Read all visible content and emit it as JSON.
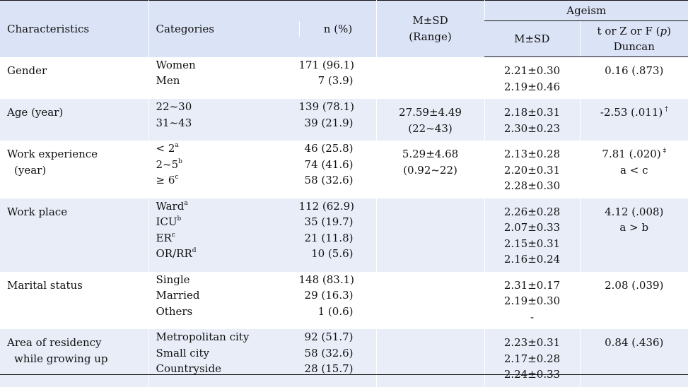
{
  "header": {
    "characteristics": "Characteristics",
    "categories": "Categories",
    "n_pct": "n (%)",
    "msd": "M±SD",
    "range": "(Range)",
    "ageism": "Ageism",
    "ageism_msd": "M±SD",
    "test_line1": "t or Z or F (",
    "test_p": "p",
    "test_line1_end": ")",
    "test_line2": "Duncan"
  },
  "rows": [
    {
      "char": [
        "Gender"
      ],
      "cats": [
        {
          "t": "Women",
          "s": ""
        },
        {
          "t": "Men",
          "s": ""
        }
      ],
      "n": [
        "171 (96.1)",
        "7 (3.9)"
      ],
      "msd": [],
      "age_msd": [
        "2.21±0.30",
        "2.19±0.46"
      ],
      "test": [
        {
          "t": "0.16 (.873)",
          "s": ""
        }
      ]
    },
    {
      "char": [
        "Age (year)"
      ],
      "cats": [
        {
          "t": "22~30",
          "s": ""
        },
        {
          "t": "31~43",
          "s": ""
        }
      ],
      "n": [
        "139 (78.1)",
        "39 (21.9)"
      ],
      "msd": [
        "27.59±4.49",
        "(22~43)"
      ],
      "age_msd": [
        "2.18±0.31",
        "2.30±0.23"
      ],
      "test": [
        {
          "t": "-2.53 (.011)",
          "s": " †"
        }
      ]
    },
    {
      "char": [
        "Work experience",
        "(year)"
      ],
      "cats": [
        {
          "t": "< 2",
          "s": "a"
        },
        {
          "t": "2~5",
          "s": "b"
        },
        {
          "t": "≥ 6",
          "s": "c"
        }
      ],
      "n": [
        "46 (25.8)",
        "74 (41.6)",
        "58 (32.6)"
      ],
      "msd": [
        "5.29±4.68",
        "(0.92~22)"
      ],
      "age_msd": [
        "2.13±0.28",
        "2.20±0.31",
        "2.28±0.30"
      ],
      "test": [
        {
          "t": "7.81 (.020)",
          "s": " ‡"
        },
        {
          "t": "a < c",
          "s": ""
        }
      ]
    },
    {
      "char": [
        "Work place"
      ],
      "cats": [
        {
          "t": "Ward",
          "s": "a"
        },
        {
          "t": "ICU",
          "s": "b"
        },
        {
          "t": "ER",
          "s": "c"
        },
        {
          "t": "OR/RR",
          "s": "d"
        }
      ],
      "n": [
        "112 (62.9)",
        "35 (19.7)",
        "21 (11.8)",
        "10 (5.6)"
      ],
      "msd": [],
      "age_msd": [
        "2.26±0.28",
        "2.07±0.33",
        "2.15±0.31",
        "2.16±0.24"
      ],
      "test": [
        {
          "t": "4.12 (.008)",
          "s": ""
        },
        {
          "t": "a > b",
          "s": ""
        }
      ]
    },
    {
      "char": [
        "Marital status"
      ],
      "cats": [
        {
          "t": "Single",
          "s": ""
        },
        {
          "t": "Married",
          "s": ""
        },
        {
          "t": "Others",
          "s": ""
        }
      ],
      "n": [
        "148 (83.1)",
        "29 (16.3)",
        "1 (0.6)"
      ],
      "msd": [],
      "age_msd": [
        "2.31±0.17",
        "2.19±0.30",
        "-"
      ],
      "test": [
        {
          "t": "2.08 (.039)",
          "s": ""
        }
      ]
    },
    {
      "char": [
        "Area of residency",
        "while growing up"
      ],
      "cats": [
        {
          "t": "Metropolitan city",
          "s": ""
        },
        {
          "t": "Small city",
          "s": ""
        },
        {
          "t": "Countryside",
          "s": ""
        }
      ],
      "n": [
        "92 (51.7)",
        "58 (32.6)",
        "28 (15.7)"
      ],
      "msd": [],
      "age_msd": [
        "2.23±0.31",
        "2.17±0.28",
        "2.24±0.33"
      ],
      "test": [
        {
          "t": "0.84 (.436)",
          "s": ""
        }
      ]
    }
  ]
}
